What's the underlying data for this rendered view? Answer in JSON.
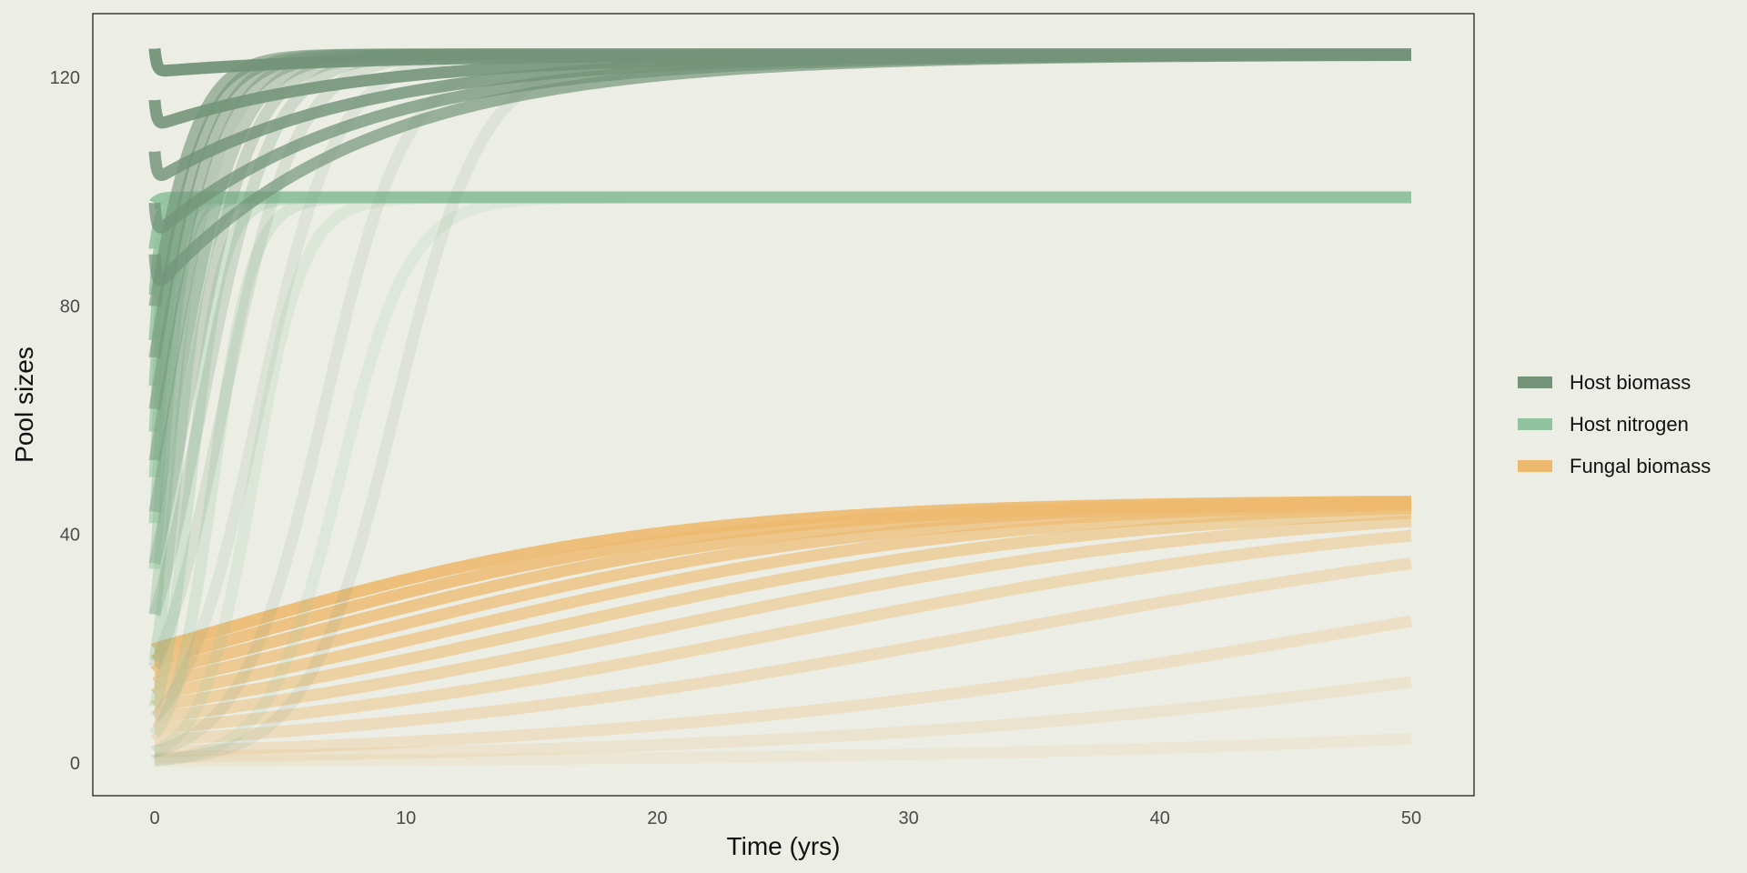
{
  "chart_data": {
    "type": "line",
    "title": "",
    "xlabel": "Time (yrs)",
    "ylabel": "Pool sizes",
    "xlim": [
      -2.5,
      52.5
    ],
    "ylim": [
      -6,
      131
    ],
    "x_ticks": [
      0,
      10,
      20,
      30,
      40,
      50
    ],
    "y_ticks": [
      0,
      40,
      80,
      120
    ],
    "grid": false,
    "legend_position": "right",
    "description_of_runs": "Many simulation runs with different initial conditions; earlier-starting runs rendered more transparent",
    "series": [
      {
        "name": "Host biomass",
        "color": "#739478",
        "equilibrium": 124,
        "initial_values": [
          125,
          116,
          107,
          98,
          89,
          80,
          71,
          62,
          53,
          44,
          35,
          26,
          17,
          8,
          2,
          0.5
        ]
      },
      {
        "name": "Host nitrogen",
        "color": "#92c39f",
        "equilibrium": 99,
        "initial_values": [
          98,
          90,
          82,
          74,
          66,
          58,
          50,
          42,
          34,
          26,
          18,
          10,
          5,
          2,
          0.5
        ]
      },
      {
        "name": "Fungal biomass",
        "color": "#edb96e",
        "equilibrium": 46,
        "initial_values": [
          20,
          18,
          16,
          14,
          12,
          10,
          8,
          6,
          4,
          2,
          1,
          0.3
        ]
      }
    ]
  },
  "legend": {
    "items": [
      {
        "label": "Host biomass",
        "color": "#739478"
      },
      {
        "label": "Host nitrogen",
        "color": "#92c39f"
      },
      {
        "label": "Fungal biomass",
        "color": "#edb96e"
      }
    ]
  }
}
